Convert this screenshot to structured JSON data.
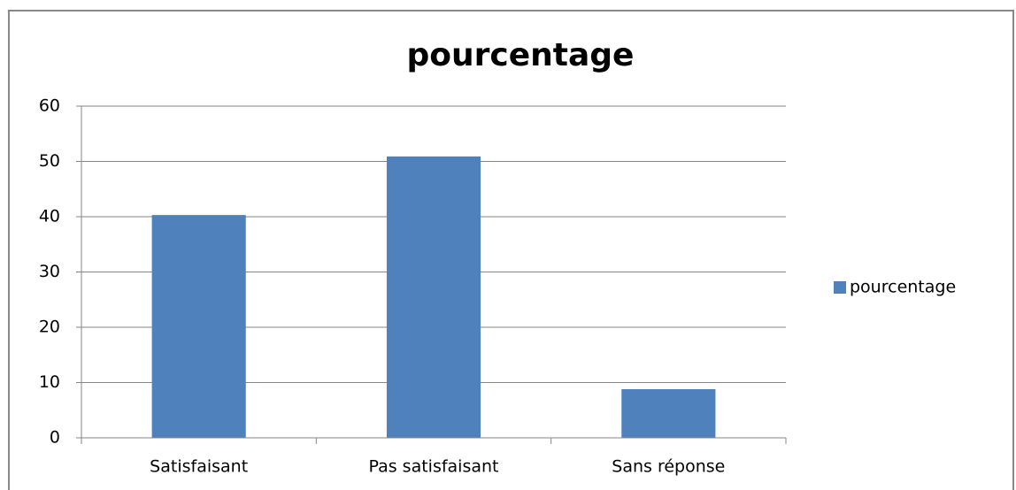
{
  "chart_data": {
    "type": "bar",
    "title": "pourcentage",
    "categories": [
      "Satisfaisant",
      "Pas satisfaisant",
      "Sans réponse"
    ],
    "series": [
      {
        "name": "pourcentage",
        "color": "#4f81bd",
        "values": [
          40.3,
          50.9,
          8.8
        ]
      }
    ],
    "ylim": [
      0,
      60
    ],
    "yticks": [
      0,
      10,
      20,
      30,
      40,
      50,
      60
    ],
    "grid": true,
    "legend": "right"
  }
}
